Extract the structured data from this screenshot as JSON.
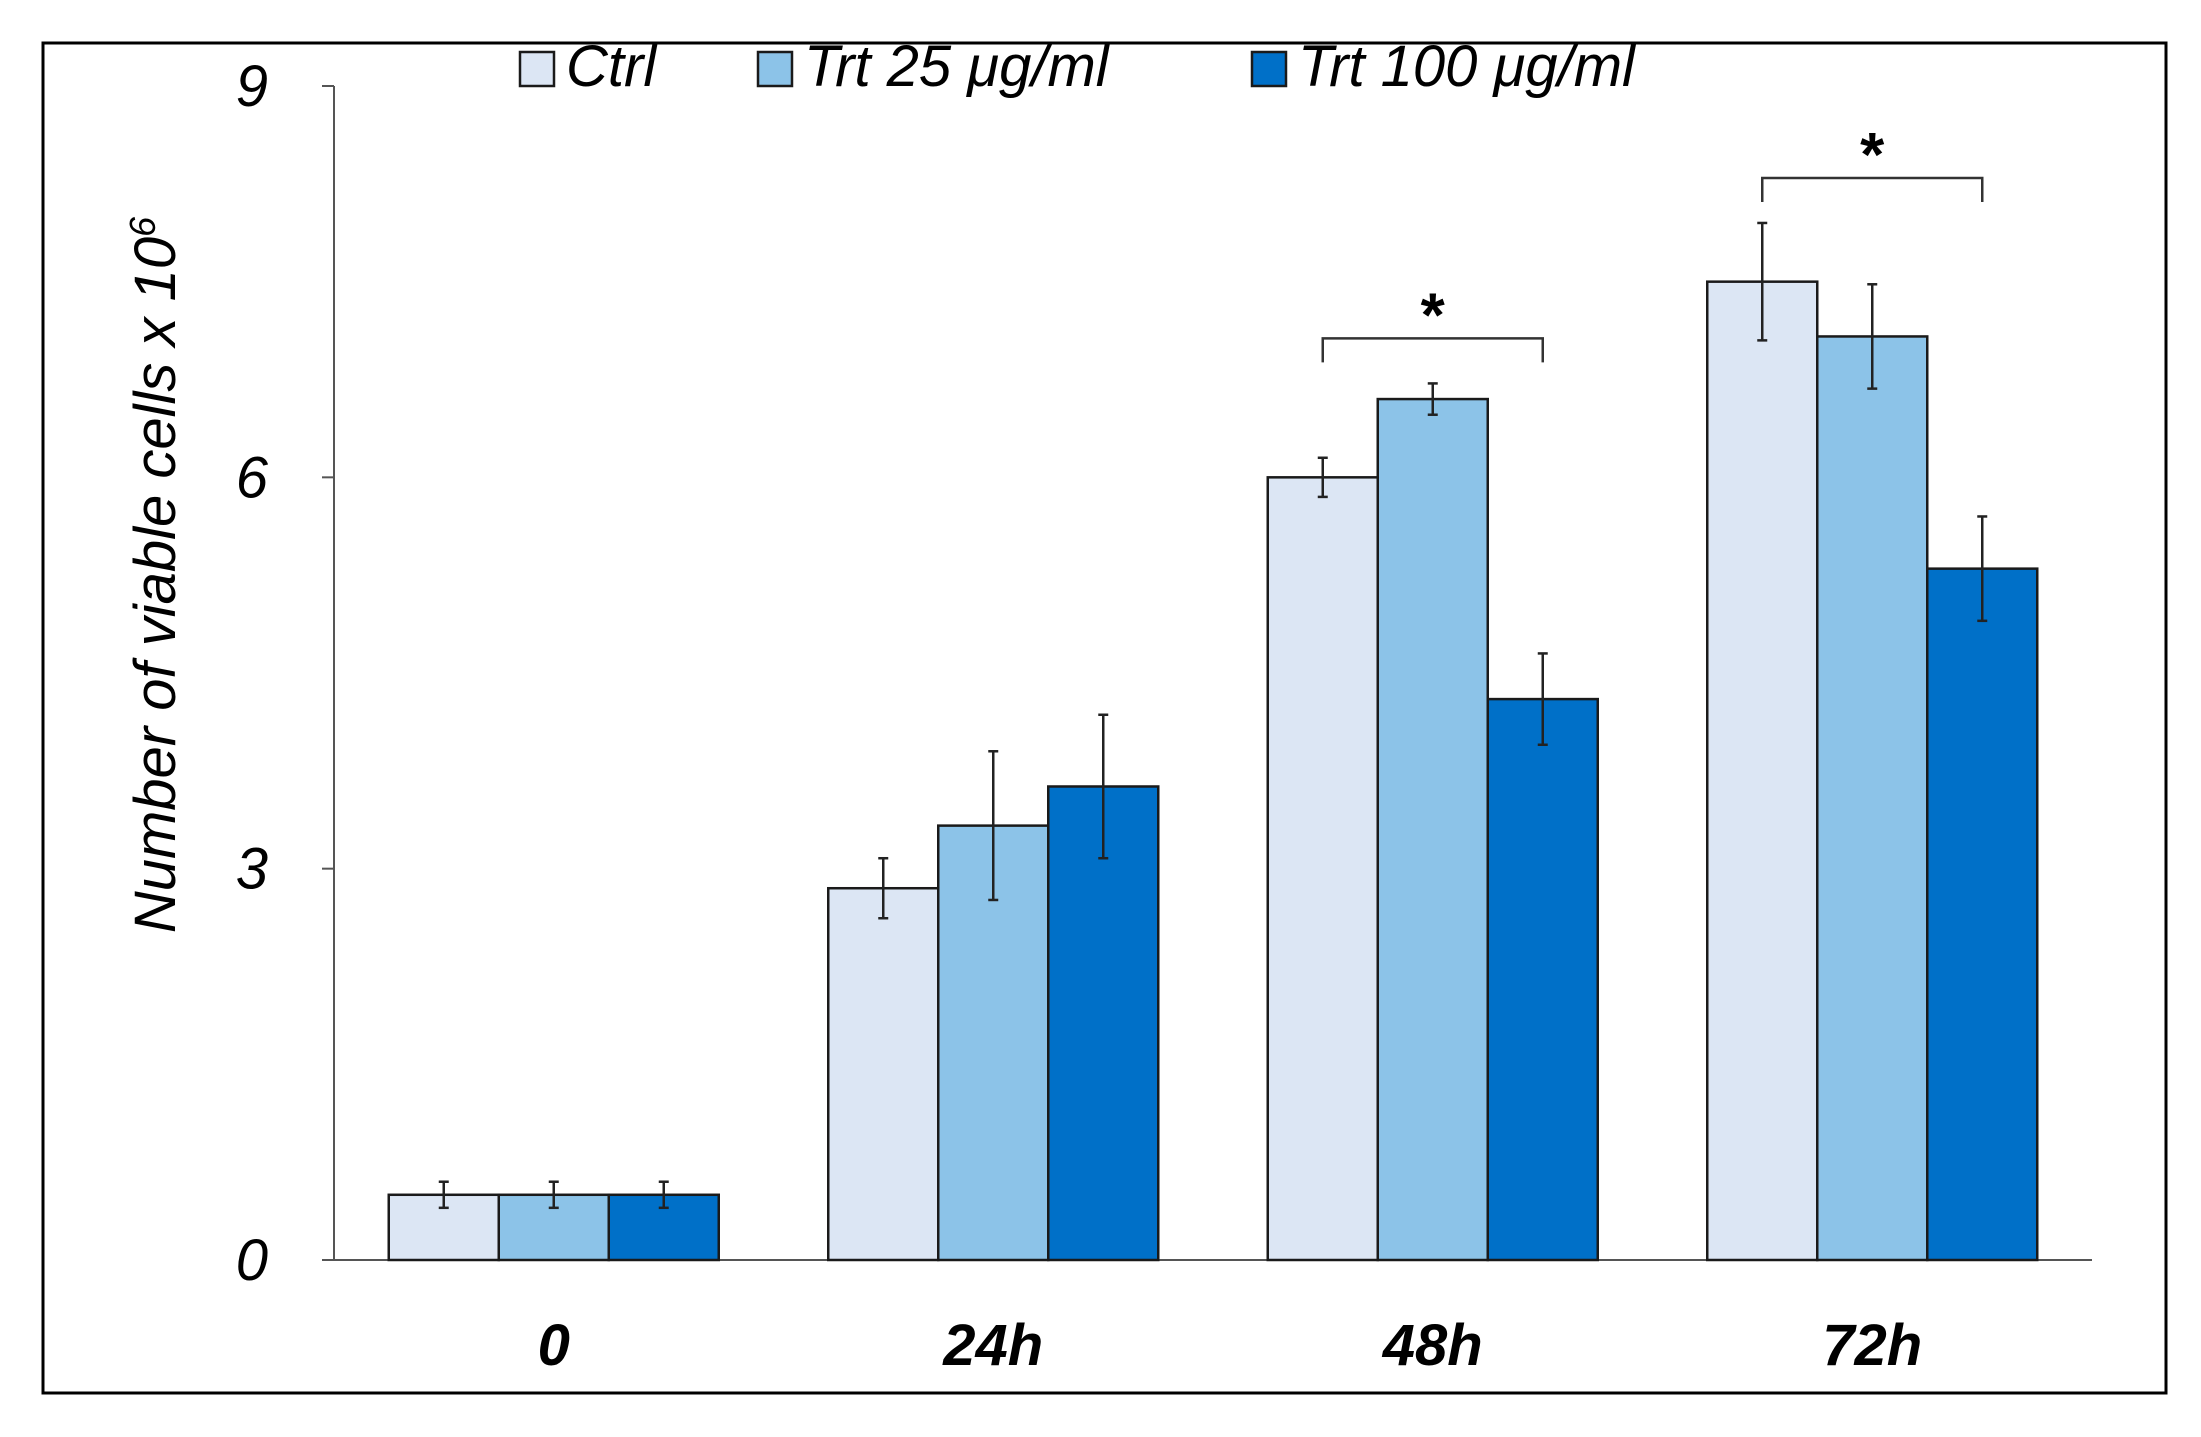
{
  "chart_data": {
    "type": "bar",
    "title": "",
    "xlabel": "",
    "ylabel": "Number  of viable cells x 10",
    "ylabel_superscript": "6",
    "ylim": [
      0,
      9
    ],
    "yticks": [
      "0",
      "3",
      "6",
      "9"
    ],
    "ytick_values": [
      0,
      3,
      6,
      9
    ],
    "categories": [
      "0",
      "24h",
      "48h",
      "72h"
    ],
    "series": [
      {
        "name": "Ctrl",
        "color": "#dce6f4",
        "values": [
          0.5,
          2.85,
          6.0,
          7.5
        ],
        "errors": [
          0.1,
          0.23,
          0.15,
          0.45
        ]
      },
      {
        "name": "Trt 25 μg/ml",
        "color": "#8cc3e8",
        "values": [
          0.5,
          3.33,
          6.6,
          7.08
        ],
        "errors": [
          0.1,
          0.57,
          0.12,
          0.4
        ]
      },
      {
        "name": "Trt 100 μg/ml",
        "color": "#0070c8",
        "values": [
          0.5,
          3.63,
          4.3,
          5.3
        ],
        "errors": [
          0.1,
          0.55,
          0.35,
          0.4
        ]
      }
    ],
    "legend_position": "top",
    "grid": false,
    "significance": [
      {
        "category": "48h",
        "from_series": 0,
        "to_series": 2,
        "label": "*"
      },
      {
        "category": "72h",
        "from_series": 0,
        "to_series": 2,
        "label": "*"
      }
    ]
  }
}
